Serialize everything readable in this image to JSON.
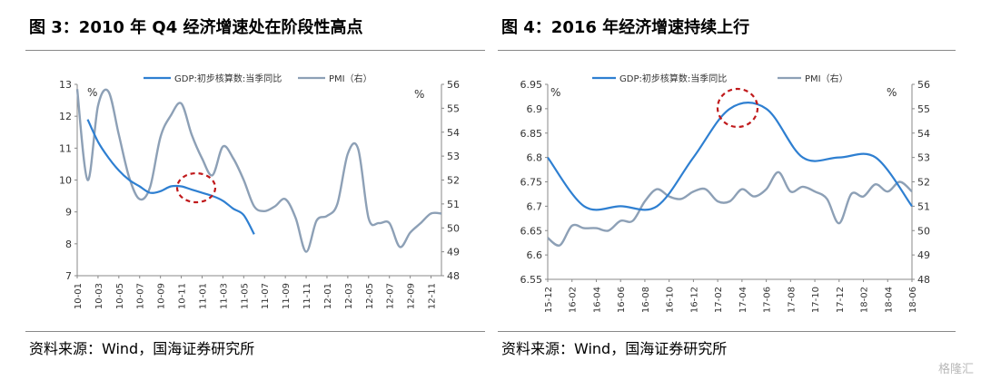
{
  "figures": [
    {
      "title": "图 3：2010 年 Q4 经济增速处在阶段性高点",
      "source": "资料来源：Wind，国海证券研究所"
    },
    {
      "title": "图 4：2016 年经济增速持续上行",
      "source": "资料来源：Wind，国海证券研究所"
    }
  ],
  "watermark": "格隆汇",
  "chart_data": [
    {
      "type": "line",
      "legend": [
        "GDP:初步核算数:当季同比",
        "PMI（右）"
      ],
      "left_unit": "%",
      "right_unit": "%",
      "ylim_left": [
        7,
        13
      ],
      "yticks_left": [
        "7",
        "8",
        "9",
        "10",
        "11",
        "12",
        "13"
      ],
      "ylim_right": [
        48,
        56
      ],
      "yticks_right": [
        "48",
        "49",
        "50",
        "51",
        "52",
        "53",
        "54",
        "55",
        "56"
      ],
      "xticks": [
        "10-01",
        "10-03",
        "10-05",
        "10-07",
        "10-09",
        "10-11",
        "11-01",
        "11-03",
        "11-05",
        "11-07",
        "11-09",
        "11-11",
        "12-01",
        "12-03",
        "12-05",
        "12-07",
        "12-09",
        "12-11"
      ],
      "series": [
        {
          "name": "GDP:初步核算数:当季同比",
          "axis": "left",
          "color": "#2e7fd1",
          "x": [
            1,
            2,
            3,
            4,
            5,
            6,
            7,
            8,
            9,
            10,
            11,
            12,
            13,
            14,
            15,
            16,
            17
          ],
          "values": [
            11.9,
            11.2,
            10.7,
            10.3,
            10.0,
            9.8,
            9.6,
            9.65,
            9.8,
            9.8,
            9.7,
            9.6,
            9.5,
            9.35,
            9.1,
            8.9,
            8.3
          ]
        },
        {
          "name": "PMI（右）",
          "axis": "right",
          "color": "#8da0b6",
          "x": [
            0,
            1,
            2,
            3,
            4,
            5,
            6,
            7,
            8,
            9,
            10,
            11,
            12,
            13,
            14,
            15,
            16,
            17,
            18,
            19,
            20,
            21,
            22,
            23,
            24,
            25,
            26,
            27,
            28,
            29,
            30,
            31,
            32,
            33,
            34,
            35
          ],
          "values": [
            55.8,
            52.0,
            55.1,
            55.7,
            53.9,
            52.1,
            51.2,
            51.7,
            53.8,
            54.7,
            55.2,
            53.9,
            52.9,
            52.2,
            53.4,
            52.9,
            52.0,
            50.9,
            50.7,
            50.9,
            51.2,
            50.4,
            49.0,
            50.3,
            50.5,
            51.0,
            53.1,
            53.3,
            50.4,
            50.2,
            50.2,
            49.2,
            49.8,
            50.2,
            50.6,
            50.6
          ]
        }
      ]
    },
    {
      "type": "line",
      "legend": [
        "GDP:初步核算数:当季同比",
        "PMI（右）"
      ],
      "left_unit": "%",
      "right_unit": "%",
      "ylim_left": [
        6.55,
        6.95
      ],
      "yticks_left": [
        "6.55",
        "6.6",
        "6.65",
        "6.7",
        "6.75",
        "6.8",
        "6.85",
        "6.9",
        "6.95"
      ],
      "ylim_right": [
        48,
        56
      ],
      "yticks_right": [
        "48",
        "49",
        "50",
        "51",
        "52",
        "53",
        "54",
        "55",
        "56"
      ],
      "xticks": [
        "15-12",
        "16-02",
        "16-04",
        "16-06",
        "16-08",
        "16-10",
        "16-12",
        "17-02",
        "17-04",
        "17-06",
        "17-08",
        "17-10",
        "17-12",
        "18-02",
        "18-04",
        "18-06"
      ],
      "series": [
        {
          "name": "GDP:初步核算数:当季同比",
          "axis": "left",
          "color": "#2e7fd1",
          "x": [
            0,
            3,
            6,
            9,
            12,
            15,
            18,
            21,
            24,
            27,
            30
          ],
          "values": [
            6.8,
            6.7,
            6.7,
            6.7,
            6.8,
            6.9,
            6.9,
            6.8,
            6.8,
            6.8,
            6.7
          ]
        },
        {
          "name": "PMI（右）",
          "axis": "right",
          "color": "#8da0b6",
          "x": [
            0,
            1,
            2,
            3,
            4,
            5,
            6,
            7,
            8,
            9,
            10,
            11,
            12,
            13,
            14,
            15,
            16,
            17,
            18,
            19,
            20,
            21,
            22,
            23,
            24,
            25,
            26,
            27,
            28,
            29,
            30
          ],
          "values": [
            49.7,
            49.4,
            50.2,
            50.1,
            50.1,
            50.0,
            50.4,
            50.4,
            51.2,
            51.7,
            51.4,
            51.3,
            51.6,
            51.7,
            51.2,
            51.2,
            51.7,
            51.4,
            51.7,
            52.4,
            51.6,
            51.8,
            51.6,
            51.3,
            50.3,
            51.5,
            51.4,
            51.9,
            51.6,
            52.0,
            51.6
          ]
        }
      ]
    }
  ]
}
